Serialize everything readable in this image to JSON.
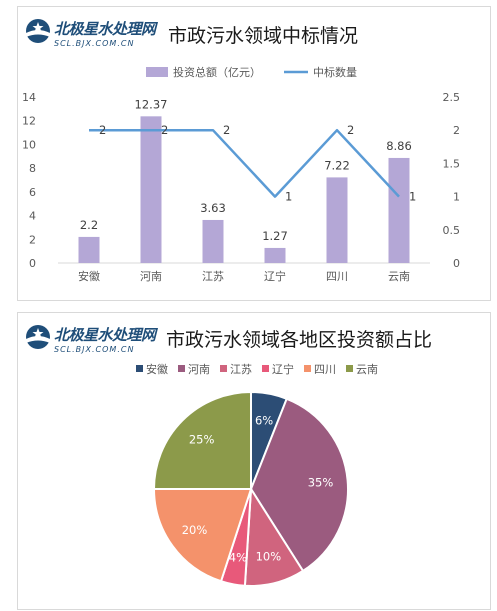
{
  "logo": {
    "cn": "北极星水处理网",
    "en": "SCL.BJX.COM.CN"
  },
  "chart_data": [
    {
      "type": "bar",
      "title": "市政污水领域中标情况",
      "categories": [
        "安徽",
        "河南",
        "江苏",
        "辽宁",
        "四川",
        "云南"
      ],
      "series": [
        {
          "name": "投资总额（亿元）",
          "type": "bar",
          "axis": "left",
          "values": [
            2.2,
            12.37,
            3.63,
            1.27,
            7.22,
            8.86
          ],
          "color": "#b4a7d6"
        },
        {
          "name": "中标数量",
          "type": "line",
          "axis": "right",
          "values": [
            2,
            2,
            2,
            1,
            2,
            1
          ],
          "color": "#5b9bd5"
        }
      ],
      "bar_labels": [
        "2.2",
        "12.37",
        "3.63",
        "1.27",
        "7.22",
        "8.86"
      ],
      "line_labels": [
        "2",
        "2",
        "2",
        "1",
        "2",
        "1"
      ],
      "ylim": [
        0,
        14
      ],
      "yticks": [
        "0",
        "2",
        "4",
        "6",
        "8",
        "10",
        "12",
        "14"
      ],
      "y2lim": [
        0,
        2.5
      ],
      "y2ticks": [
        "0",
        "0.5",
        "1",
        "1.5",
        "2",
        "2.5"
      ],
      "legend_position": "top",
      "grid": false
    },
    {
      "type": "pie",
      "title": "市政污水领域各地区投资额占比",
      "categories": [
        "安徽",
        "河南",
        "江苏",
        "辽宁",
        "四川",
        "云南"
      ],
      "values": [
        6,
        35,
        10,
        4,
        20,
        25
      ],
      "labels": [
        "6%",
        "35%",
        "10%",
        "4%",
        "20%",
        "25%"
      ],
      "colors": [
        "#2c4d75",
        "#9b5b7f",
        "#d0647e",
        "#e8597a",
        "#f4926b",
        "#8c9a4a"
      ],
      "legend_position": "top"
    }
  ]
}
